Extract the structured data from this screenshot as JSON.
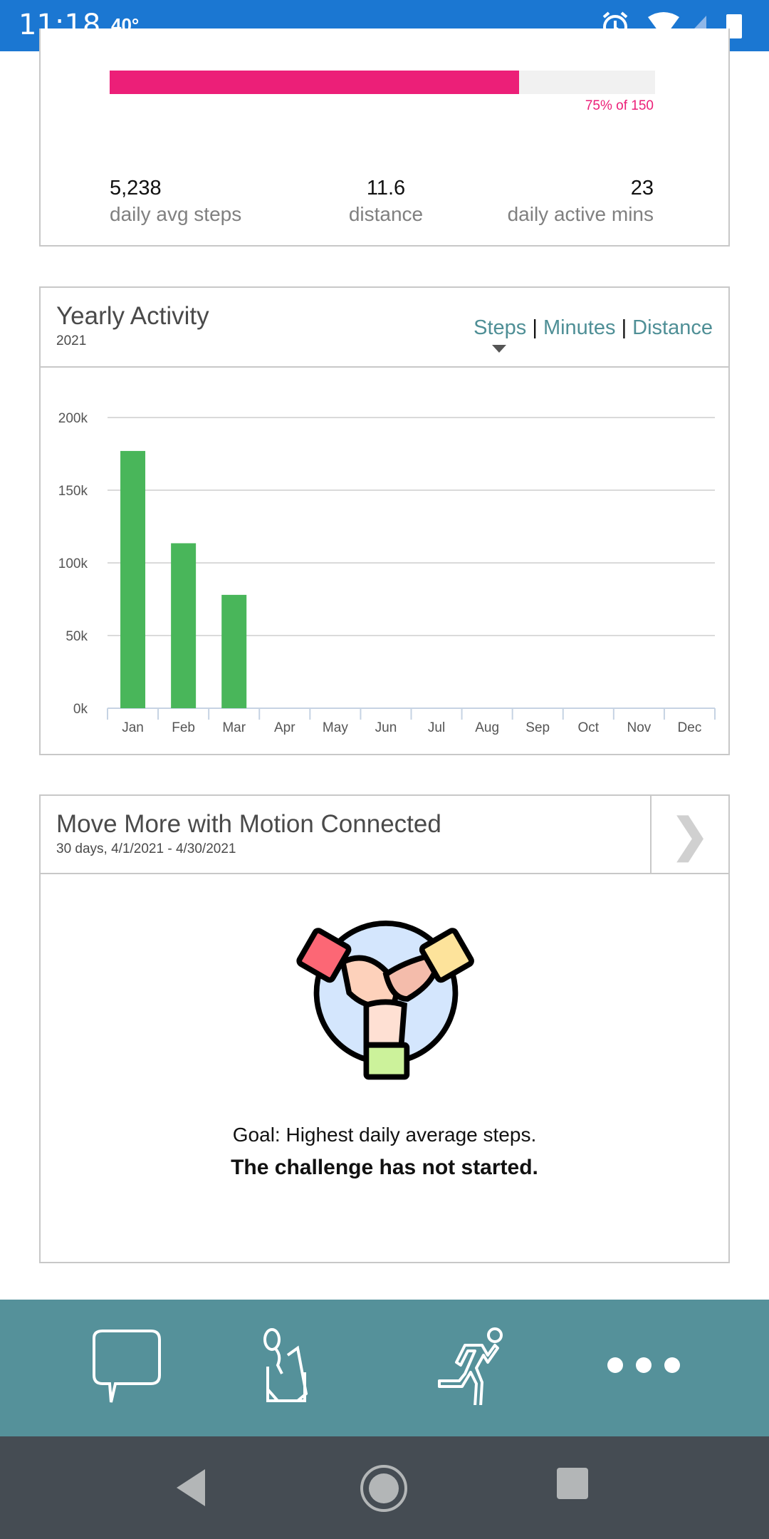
{
  "status_bar": {
    "time": "11:18",
    "temperature": "40°",
    "icons": [
      "alarm-icon",
      "wifi-icon",
      "signal-icon",
      "battery-icon"
    ]
  },
  "summary": {
    "progress_percent": 75,
    "progress_label": "75% of 150",
    "progress_color": "#ec1f78",
    "stats": [
      {
        "value": "5,238",
        "label": "daily avg steps"
      },
      {
        "value": "11.6",
        "label": "distance"
      },
      {
        "value": "23",
        "label": "daily active mins"
      }
    ]
  },
  "yearly": {
    "title": "Yearly Activity",
    "year": "2021",
    "tabs": [
      {
        "label": "Steps",
        "selected": true
      },
      {
        "label": "Minutes"
      },
      {
        "label": "Distance"
      }
    ],
    "separator": "|"
  },
  "chart_data": {
    "type": "bar",
    "categories": [
      "Jan",
      "Feb",
      "Mar",
      "Apr",
      "May",
      "Jun",
      "Jul",
      "Aug",
      "Sep",
      "Oct",
      "Nov",
      "Dec"
    ],
    "values": [
      177000,
      113500,
      78000,
      0,
      0,
      0,
      0,
      0,
      0,
      0,
      0,
      0
    ],
    "ylim": [
      0,
      200000
    ],
    "yticks": [
      "0k",
      "50k",
      "100k",
      "150k",
      "200k"
    ],
    "grid": true,
    "bar_color": "#49b65a"
  },
  "challenge": {
    "title": "Move More with Motion Connected",
    "subtitle": "30 days, 4/1/2021 - 4/30/2021",
    "chevron": "❯",
    "goal": "Goal: Highest daily average steps.",
    "status": "The challenge has not started."
  },
  "bottom_nav": {
    "color": "#55919a",
    "items": [
      "chat-icon",
      "notes-icon",
      "running-icon",
      "more-icon"
    ]
  },
  "android_nav": [
    "back-icon",
    "home-icon",
    "recents-icon"
  ]
}
